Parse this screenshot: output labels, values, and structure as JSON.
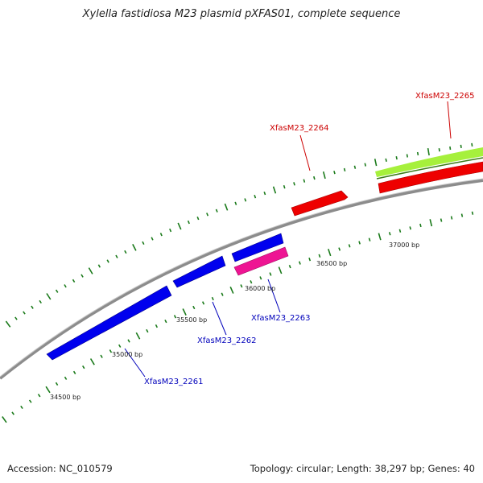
{
  "title": "Xylella fastidiosa M23 plasmid pXFAS01, complete sequence",
  "footer": {
    "accession": "Accession: NC_010579",
    "summary": "Topology: circular; Length: 38,297 bp; Genes: 40"
  },
  "colors": {
    "backbone": "#8c8c8c",
    "tick": "#1a7a1a",
    "forward_gene": "#ee0000",
    "reverse_gene": "#0000ee",
    "other_feature": "#ee1493",
    "gc_track": "#a6f03c",
    "forward_label": "#cc0000",
    "reverse_label": "#0000bb"
  },
  "scale_labels": [
    "34500 bp",
    "35000 bp",
    "35500 bp",
    "36000 bp",
    "36500 bp",
    "37000 bp"
  ],
  "genes": [
    {
      "label": "XfasM23_2261",
      "strand": "reverse"
    },
    {
      "label": "XfasM23_2262",
      "strand": "reverse"
    },
    {
      "label": "XfasM23_2263",
      "strand": "reverse"
    },
    {
      "label": "XfasM23_2264",
      "strand": "forward"
    },
    {
      "label": "XfasM23_2265",
      "strand": "forward"
    }
  ]
}
